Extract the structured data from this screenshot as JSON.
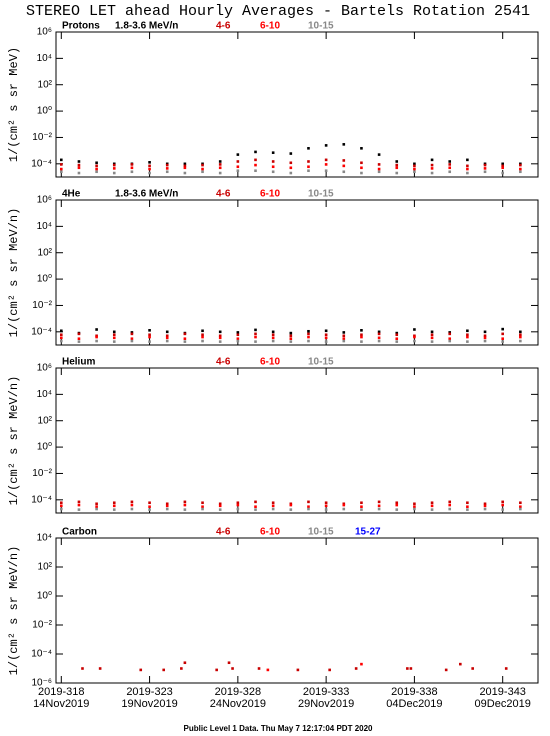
{
  "title": "STEREO LET ahead Hourly Averages - Bartels Rotation 2541",
  "footer": "Public Level 1 Data. Thu May  7 12:17:04 PDT 2020",
  "chart_data": [
    {
      "type": "scatter",
      "title": "Protons",
      "y_label": "1/(cm² s sr MeV)",
      "log_y": true,
      "xlim": [
        317.7,
        345
      ],
      "ylim": [
        1e-05,
        1000000.0
      ],
      "yticks": [
        {
          "value": 1000000.0,
          "label": "10⁶"
        },
        {
          "value": 10000.0,
          "label": "10⁴"
        },
        {
          "value": 100,
          "label": "10²"
        },
        {
          "value": 1,
          "label": "10⁰"
        },
        {
          "value": 0.01,
          "label": "10⁻²"
        },
        {
          "value": 0.0001,
          "label": "10⁻⁴"
        }
      ],
      "x": [
        318,
        319,
        320,
        321,
        322,
        323,
        324,
        325,
        326,
        327,
        328,
        329,
        330,
        331,
        332,
        333,
        334,
        335,
        336,
        337,
        338,
        339,
        340,
        341,
        342,
        343,
        344
      ],
      "series": [
        {
          "name": "1.8-3.6 MeV/n",
          "color": "#000000",
          "values": [
            0.0002,
            0.00015,
            0.00012,
            0.0001,
            0.0001,
            0.00013,
            0.0001,
            0.0001,
            0.0001,
            0.00015,
            0.0005,
            0.0008,
            0.0007,
            0.0006,
            0.0015,
            0.0025,
            0.003,
            0.0015,
            0.0005,
            0.00015,
            0.0001,
            0.0002,
            0.00015,
            0.0002,
            0.0001,
            0.0001,
            0.0001
          ]
        },
        {
          "name": "4-6",
          "color": "#c80000",
          "values": [
            9e-05,
            8e-05,
            7e-05,
            8e-05,
            9e-05,
            7e-05,
            8e-05,
            7e-05,
            8e-05,
            9e-05,
            0.00015,
            0.0002,
            0.00015,
            0.00012,
            0.00015,
            0.0002,
            0.00018,
            0.00012,
            9e-05,
            8e-05,
            7e-05,
            8e-05,
            9e-05,
            7e-05,
            8e-05,
            7e-05,
            8e-05
          ]
        },
        {
          "name": "6-10",
          "color": "#ff0000",
          "values": [
            4e-05,
            5e-05,
            4e-05,
            4.5e-05,
            5e-05,
            4e-05,
            4.5e-05,
            5e-05,
            4e-05,
            5e-05,
            6e-05,
            8e-05,
            6e-05,
            5e-05,
            6e-05,
            9e-05,
            7e-05,
            5e-05,
            4e-05,
            5e-05,
            4e-05,
            4.5e-05,
            5e-05,
            4e-05,
            4.5e-05,
            5e-05,
            4e-05
          ]
        },
        {
          "name": "10-15",
          "color": "#888888",
          "values": [
            2.5e-05,
            2e-05,
            2.5e-05,
            2e-05,
            2.5e-05,
            2e-05,
            2.5e-05,
            2e-05,
            2.5e-05,
            2e-05,
            3e-05,
            3e-05,
            2.5e-05,
            2e-05,
            3e-05,
            3e-05,
            2.5e-05,
            2e-05,
            2.5e-05,
            2e-05,
            2.5e-05,
            2e-05,
            2.5e-05,
            2e-05,
            2.5e-05,
            2e-05,
            2.5e-05
          ]
        }
      ]
    },
    {
      "type": "scatter",
      "title": "4He",
      "y_label": "1/(cm² s sr MeV/n)",
      "log_y": true,
      "xlim": [
        317.7,
        345
      ],
      "ylim": [
        1e-05,
        1000000.0
      ],
      "yticks": [
        {
          "value": 1000000.0,
          "label": "10⁶"
        },
        {
          "value": 10000.0,
          "label": "10⁴"
        },
        {
          "value": 100,
          "label": "10²"
        },
        {
          "value": 1,
          "label": "10⁰"
        },
        {
          "value": 0.01,
          "label": "10⁻²"
        },
        {
          "value": 0.0001,
          "label": "10⁻⁴"
        }
      ],
      "x": [
        318,
        319,
        320,
        321,
        322,
        323,
        324,
        325,
        326,
        327,
        328,
        329,
        330,
        331,
        332,
        333,
        334,
        335,
        336,
        337,
        338,
        339,
        340,
        341,
        342,
        343,
        344
      ],
      "series": [
        {
          "name": "1.8-3.6 MeV/n",
          "color": "#000000",
          "values": [
            0.00012,
            8e-05,
            0.00015,
            0.0001,
            9e-05,
            0.00013,
            0.0001,
            8e-05,
            0.00012,
            0.0001,
            9e-05,
            0.00014,
            0.0001,
            8e-05,
            0.00011,
            0.00012,
            9e-05,
            0.00013,
            0.0001,
            8e-05,
            0.00015,
            0.0001,
            9e-05,
            0.00012,
            0.0001,
            0.00016,
            0.0001
          ]
        },
        {
          "name": "4-6",
          "color": "#c80000",
          "values": [
            6e-05,
            7e-05,
            5e-05,
            6e-05,
            7e-05,
            6e-05,
            5e-05,
            7e-05,
            6e-05,
            5e-05,
            6e-05,
            7e-05,
            6e-05,
            5e-05,
            7e-05,
            6e-05,
            5e-05,
            6e-05,
            7e-05,
            6e-05,
            5e-05,
            6e-05,
            7e-05,
            6e-05,
            5e-05,
            7e-05,
            6e-05
          ]
        },
        {
          "name": "6-10",
          "color": "#ff0000",
          "values": [
            3.5e-05,
            3e-05,
            4e-05,
            3.5e-05,
            3e-05,
            4e-05,
            3.5e-05,
            3e-05,
            4e-05,
            3.5e-05,
            3e-05,
            4e-05,
            3.5e-05,
            3e-05,
            4e-05,
            3.5e-05,
            3e-05,
            4e-05,
            3.5e-05,
            3e-05,
            4e-05,
            3.5e-05,
            3e-05,
            4e-05,
            3.5e-05,
            3e-05,
            4e-05
          ]
        },
        {
          "name": "10-15",
          "color": "#888888",
          "values": [
            2e-05,
            1.8e-05,
            2e-05,
            1.8e-05,
            2e-05,
            1.8e-05,
            2e-05,
            1.8e-05,
            2e-05,
            1.8e-05,
            2e-05,
            1.8e-05,
            2e-05,
            1.8e-05,
            2e-05,
            1.8e-05,
            2e-05,
            1.8e-05,
            2e-05,
            1.8e-05,
            2e-05,
            1.8e-05,
            2e-05,
            1.8e-05,
            2e-05,
            1.8e-05,
            2e-05
          ]
        }
      ]
    },
    {
      "type": "scatter",
      "title": "Helium",
      "y_label": "1/(cm² s sr MeV/n)",
      "log_y": true,
      "xlim": [
        317.7,
        345
      ],
      "ylim": [
        1e-05,
        1000000.0
      ],
      "yticks": [
        {
          "value": 1000000.0,
          "label": "10⁶"
        },
        {
          "value": 10000.0,
          "label": "10⁴"
        },
        {
          "value": 100,
          "label": "10²"
        },
        {
          "value": 1,
          "label": "10⁰"
        },
        {
          "value": 0.01,
          "label": "10⁻²"
        },
        {
          "value": 0.0001,
          "label": "10⁻⁴"
        }
      ],
      "x": [
        318,
        319,
        320,
        321,
        322,
        323,
        324,
        325,
        326,
        327,
        328,
        329,
        330,
        331,
        332,
        333,
        334,
        335,
        336,
        337,
        338,
        339,
        340,
        341,
        342,
        343,
        344
      ],
      "series": [
        {
          "name": "4-6",
          "color": "#c80000",
          "values": [
            6e-05,
            7e-05,
            5e-05,
            6e-05,
            7e-05,
            6e-05,
            5e-05,
            7e-05,
            6e-05,
            5e-05,
            6e-05,
            7e-05,
            6e-05,
            5e-05,
            7e-05,
            6e-05,
            5e-05,
            6e-05,
            7e-05,
            6e-05,
            5e-05,
            6e-05,
            7e-05,
            6e-05,
            5e-05,
            7e-05,
            6e-05
          ]
        },
        {
          "name": "6-10",
          "color": "#ff0000",
          "values": [
            3.5e-05,
            4e-05,
            3e-05,
            3.5e-05,
            4e-05,
            3e-05,
            3.5e-05,
            4e-05,
            3e-05,
            3.5e-05,
            4e-05,
            3e-05,
            3.5e-05,
            4e-05,
            3e-05,
            3.5e-05,
            4e-05,
            3e-05,
            3.5e-05,
            4e-05,
            3e-05,
            3.5e-05,
            4e-05,
            3e-05,
            3.5e-05,
            4e-05,
            3e-05
          ]
        },
        {
          "name": "10-15",
          "color": "#888888",
          "values": [
            2e-05,
            1.8e-05,
            2e-05,
            1.8e-05,
            2e-05,
            1.8e-05,
            2e-05,
            1.8e-05,
            2e-05,
            1.8e-05,
            2e-05,
            1.8e-05,
            2e-05,
            1.8e-05,
            2e-05,
            1.8e-05,
            2e-05,
            1.8e-05,
            2e-05,
            1.8e-05,
            2e-05,
            1.8e-05,
            2e-05,
            1.8e-05,
            2e-05,
            1.8e-05,
            2e-05
          ]
        }
      ]
    },
    {
      "type": "scatter",
      "title": "Carbon",
      "y_label": "1/(cm² s sr MeV/n)",
      "log_y": true,
      "xlim": [
        317.7,
        345
      ],
      "ylim": [
        1e-06,
        10000.0
      ],
      "yticks": [
        {
          "value": 10000.0,
          "label": "10⁴"
        },
        {
          "value": 100,
          "label": "10²"
        },
        {
          "value": 1,
          "label": "10⁰"
        },
        {
          "value": 0.01,
          "label": "10⁻²"
        },
        {
          "value": 0.0001,
          "label": "10⁻⁴"
        },
        {
          "value": 1e-06,
          "label": "10⁻⁶"
        }
      ],
      "xticks": [
        {
          "value": 318,
          "label": "2019-318",
          "date": "14Nov2019"
        },
        {
          "value": 323,
          "label": "2019-323",
          "date": "19Nov2019"
        },
        {
          "value": 328,
          "label": "2019-328",
          "date": "24Nov2019"
        },
        {
          "value": 333,
          "label": "2019-333",
          "date": "29Nov2019"
        },
        {
          "value": 338,
          "label": "2019-338",
          "date": "04Dec2019"
        },
        {
          "value": 343,
          "label": "2019-343",
          "date": "09Dec2019"
        }
      ],
      "x": [
        319.2,
        320.2,
        322.5,
        323.8,
        324.8,
        325,
        326.8,
        327.5,
        327.7,
        329.2,
        329.7,
        331.4,
        333.2,
        334.7,
        335,
        337.6,
        337.8,
        339.8,
        340.6,
        341.3,
        343.2
      ],
      "series": [
        {
          "name": "4-6",
          "color": "#c80000",
          "values": [
            1e-05,
            1e-05,
            8e-06,
            8e-06,
            1e-05,
            2.5e-05,
            8e-06,
            2.5e-05,
            1e-05,
            1e-05,
            null,
            8e-06,
            8e-06,
            1e-05,
            null,
            1e-05,
            1e-05,
            8e-06,
            2e-05,
            1e-05,
            1e-05
          ]
        },
        {
          "name": "6-10",
          "color": "#ff0000",
          "values": [
            null,
            null,
            null,
            null,
            null,
            null,
            null,
            null,
            null,
            null,
            8e-06,
            null,
            null,
            null,
            2e-05,
            null,
            null,
            null,
            null,
            null,
            null
          ]
        },
        {
          "name": "10-15",
          "color": "#888888",
          "values": [
            null,
            null,
            null,
            null,
            null,
            null,
            null,
            null,
            null,
            null,
            null,
            null,
            null,
            null,
            null,
            null,
            null,
            null,
            null,
            null,
            null
          ]
        },
        {
          "name": "15-27",
          "color": "#0000ff",
          "values": [
            null,
            null,
            null,
            null,
            null,
            null,
            null,
            null,
            null,
            null,
            null,
            null,
            null,
            null,
            null,
            null,
            null,
            null,
            null,
            null,
            null
          ]
        }
      ]
    }
  ]
}
